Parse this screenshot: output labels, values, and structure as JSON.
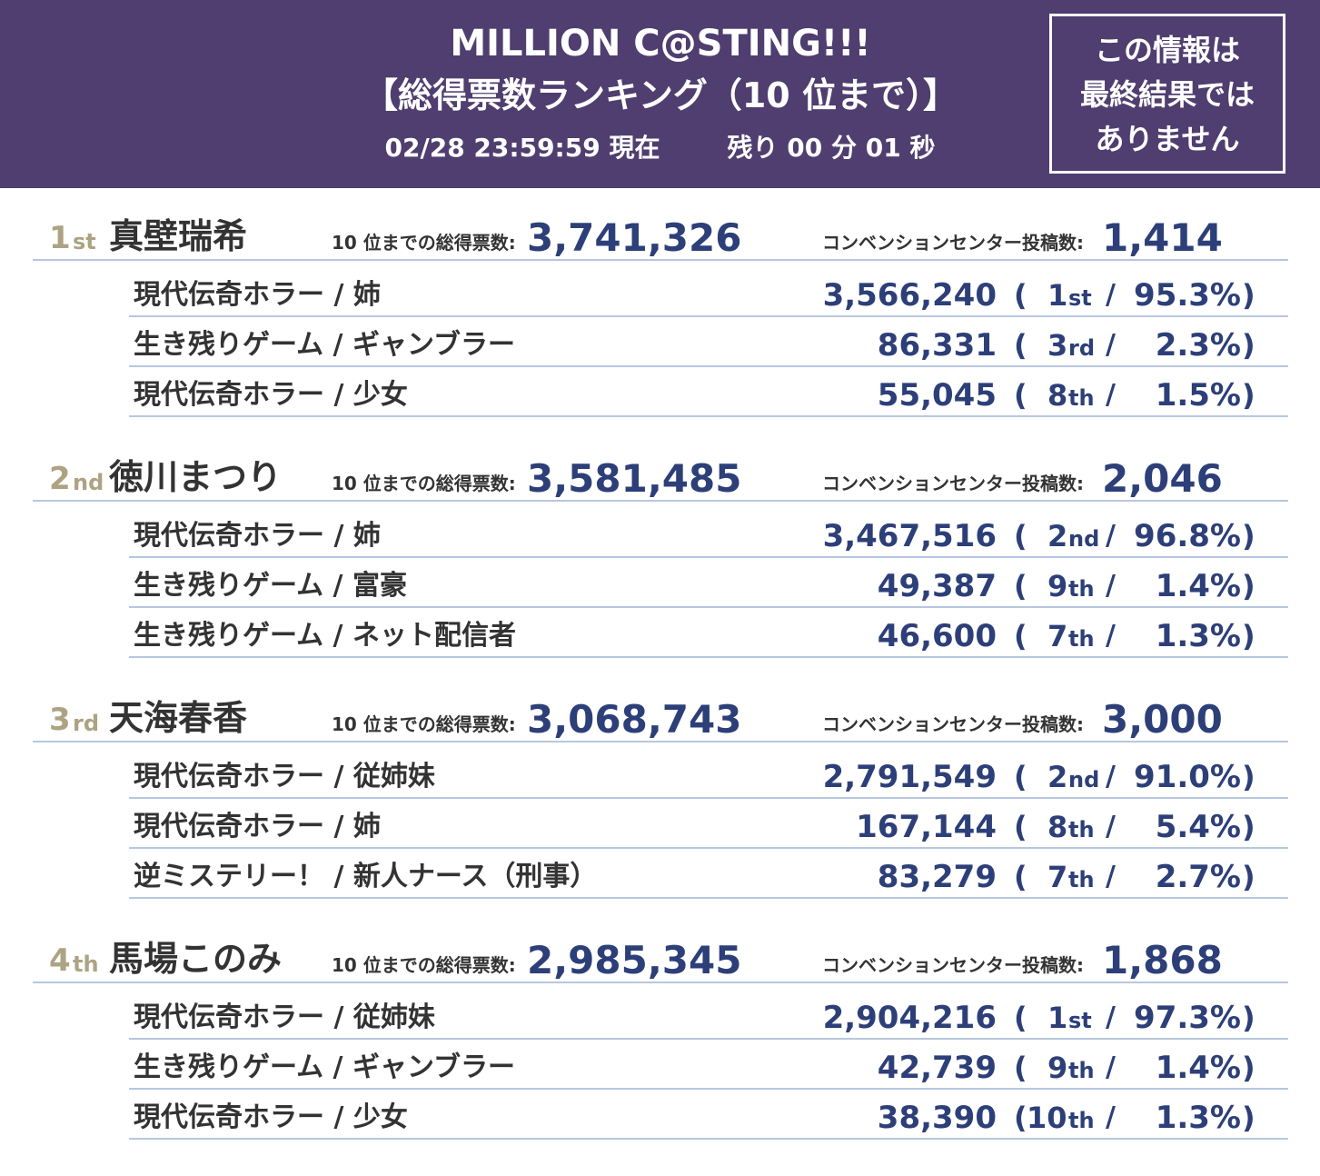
{
  "header": {
    "title": "MILLION C@STING!!!",
    "subtitle": "【総得票数ランキング（10 位まで）】",
    "timestamp": "02/28 23:59:59 現在",
    "remaining": "残り 00 分 01 秒",
    "notice": [
      "この情報は",
      "最終結果では",
      "ありません"
    ]
  },
  "labels": {
    "total": "10 位までの総得票数:",
    "cc": "コンベンションセンター投稿数:",
    "open": "(",
    "sep": "/",
    "close": ")"
  },
  "entries": [
    {
      "rank_num": "1",
      "rank_suffix": "st",
      "name": "真壁瑞希",
      "total": "3,741,326",
      "cc": "1,414",
      "roles": [
        {
          "role": "現代伝奇ホラー / 姉",
          "votes": "3,566,240",
          "rank_num": "1",
          "rank_suffix": "st",
          "share": "95.3%"
        },
        {
          "role": "生き残りゲーム / ギャンブラー",
          "votes": "86,331",
          "rank_num": "3",
          "rank_suffix": "rd",
          "share": "2.3%"
        },
        {
          "role": "現代伝奇ホラー / 少女",
          "votes": "55,045",
          "rank_num": "8",
          "rank_suffix": "th",
          "share": "1.5%"
        }
      ]
    },
    {
      "rank_num": "2",
      "rank_suffix": "nd",
      "name": "徳川まつり",
      "total": "3,581,485",
      "cc": "2,046",
      "roles": [
        {
          "role": "現代伝奇ホラー / 姉",
          "votes": "3,467,516",
          "rank_num": "2",
          "rank_suffix": "nd",
          "share": "96.8%"
        },
        {
          "role": "生き残りゲーム / 富豪",
          "votes": "49,387",
          "rank_num": "9",
          "rank_suffix": "th",
          "share": "1.4%"
        },
        {
          "role": "生き残りゲーム / ネット配信者",
          "votes": "46,600",
          "rank_num": "7",
          "rank_suffix": "th",
          "share": "1.3%"
        }
      ]
    },
    {
      "rank_num": "3",
      "rank_suffix": "rd",
      "name": "天海春香",
      "total": "3,068,743",
      "cc": "3,000",
      "roles": [
        {
          "role": "現代伝奇ホラー / 従姉妹",
          "votes": "2,791,549",
          "rank_num": "2",
          "rank_suffix": "nd",
          "share": "91.0%"
        },
        {
          "role": "現代伝奇ホラー / 姉",
          "votes": "167,144",
          "rank_num": "8",
          "rank_suffix": "th",
          "share": "5.4%"
        },
        {
          "role": "逆ミステリー！ / 新人ナース（刑事）",
          "votes": "83,279",
          "rank_num": "7",
          "rank_suffix": "th",
          "share": "2.7%"
        }
      ]
    },
    {
      "rank_num": "4",
      "rank_suffix": "th",
      "name": "馬場このみ",
      "total": "2,985,345",
      "cc": "1,868",
      "roles": [
        {
          "role": "現代伝奇ホラー / 従姉妹",
          "votes": "2,904,216",
          "rank_num": "1",
          "rank_suffix": "st",
          "share": "97.3%"
        },
        {
          "role": "生き残りゲーム / ギャンブラー",
          "votes": "42,739",
          "rank_num": "9",
          "rank_suffix": "th",
          "share": "1.4%"
        },
        {
          "role": "現代伝奇ホラー / 少女",
          "votes": "38,390",
          "rank_num": "10",
          "rank_suffix": "th",
          "share": "1.3%"
        }
      ]
    }
  ]
}
